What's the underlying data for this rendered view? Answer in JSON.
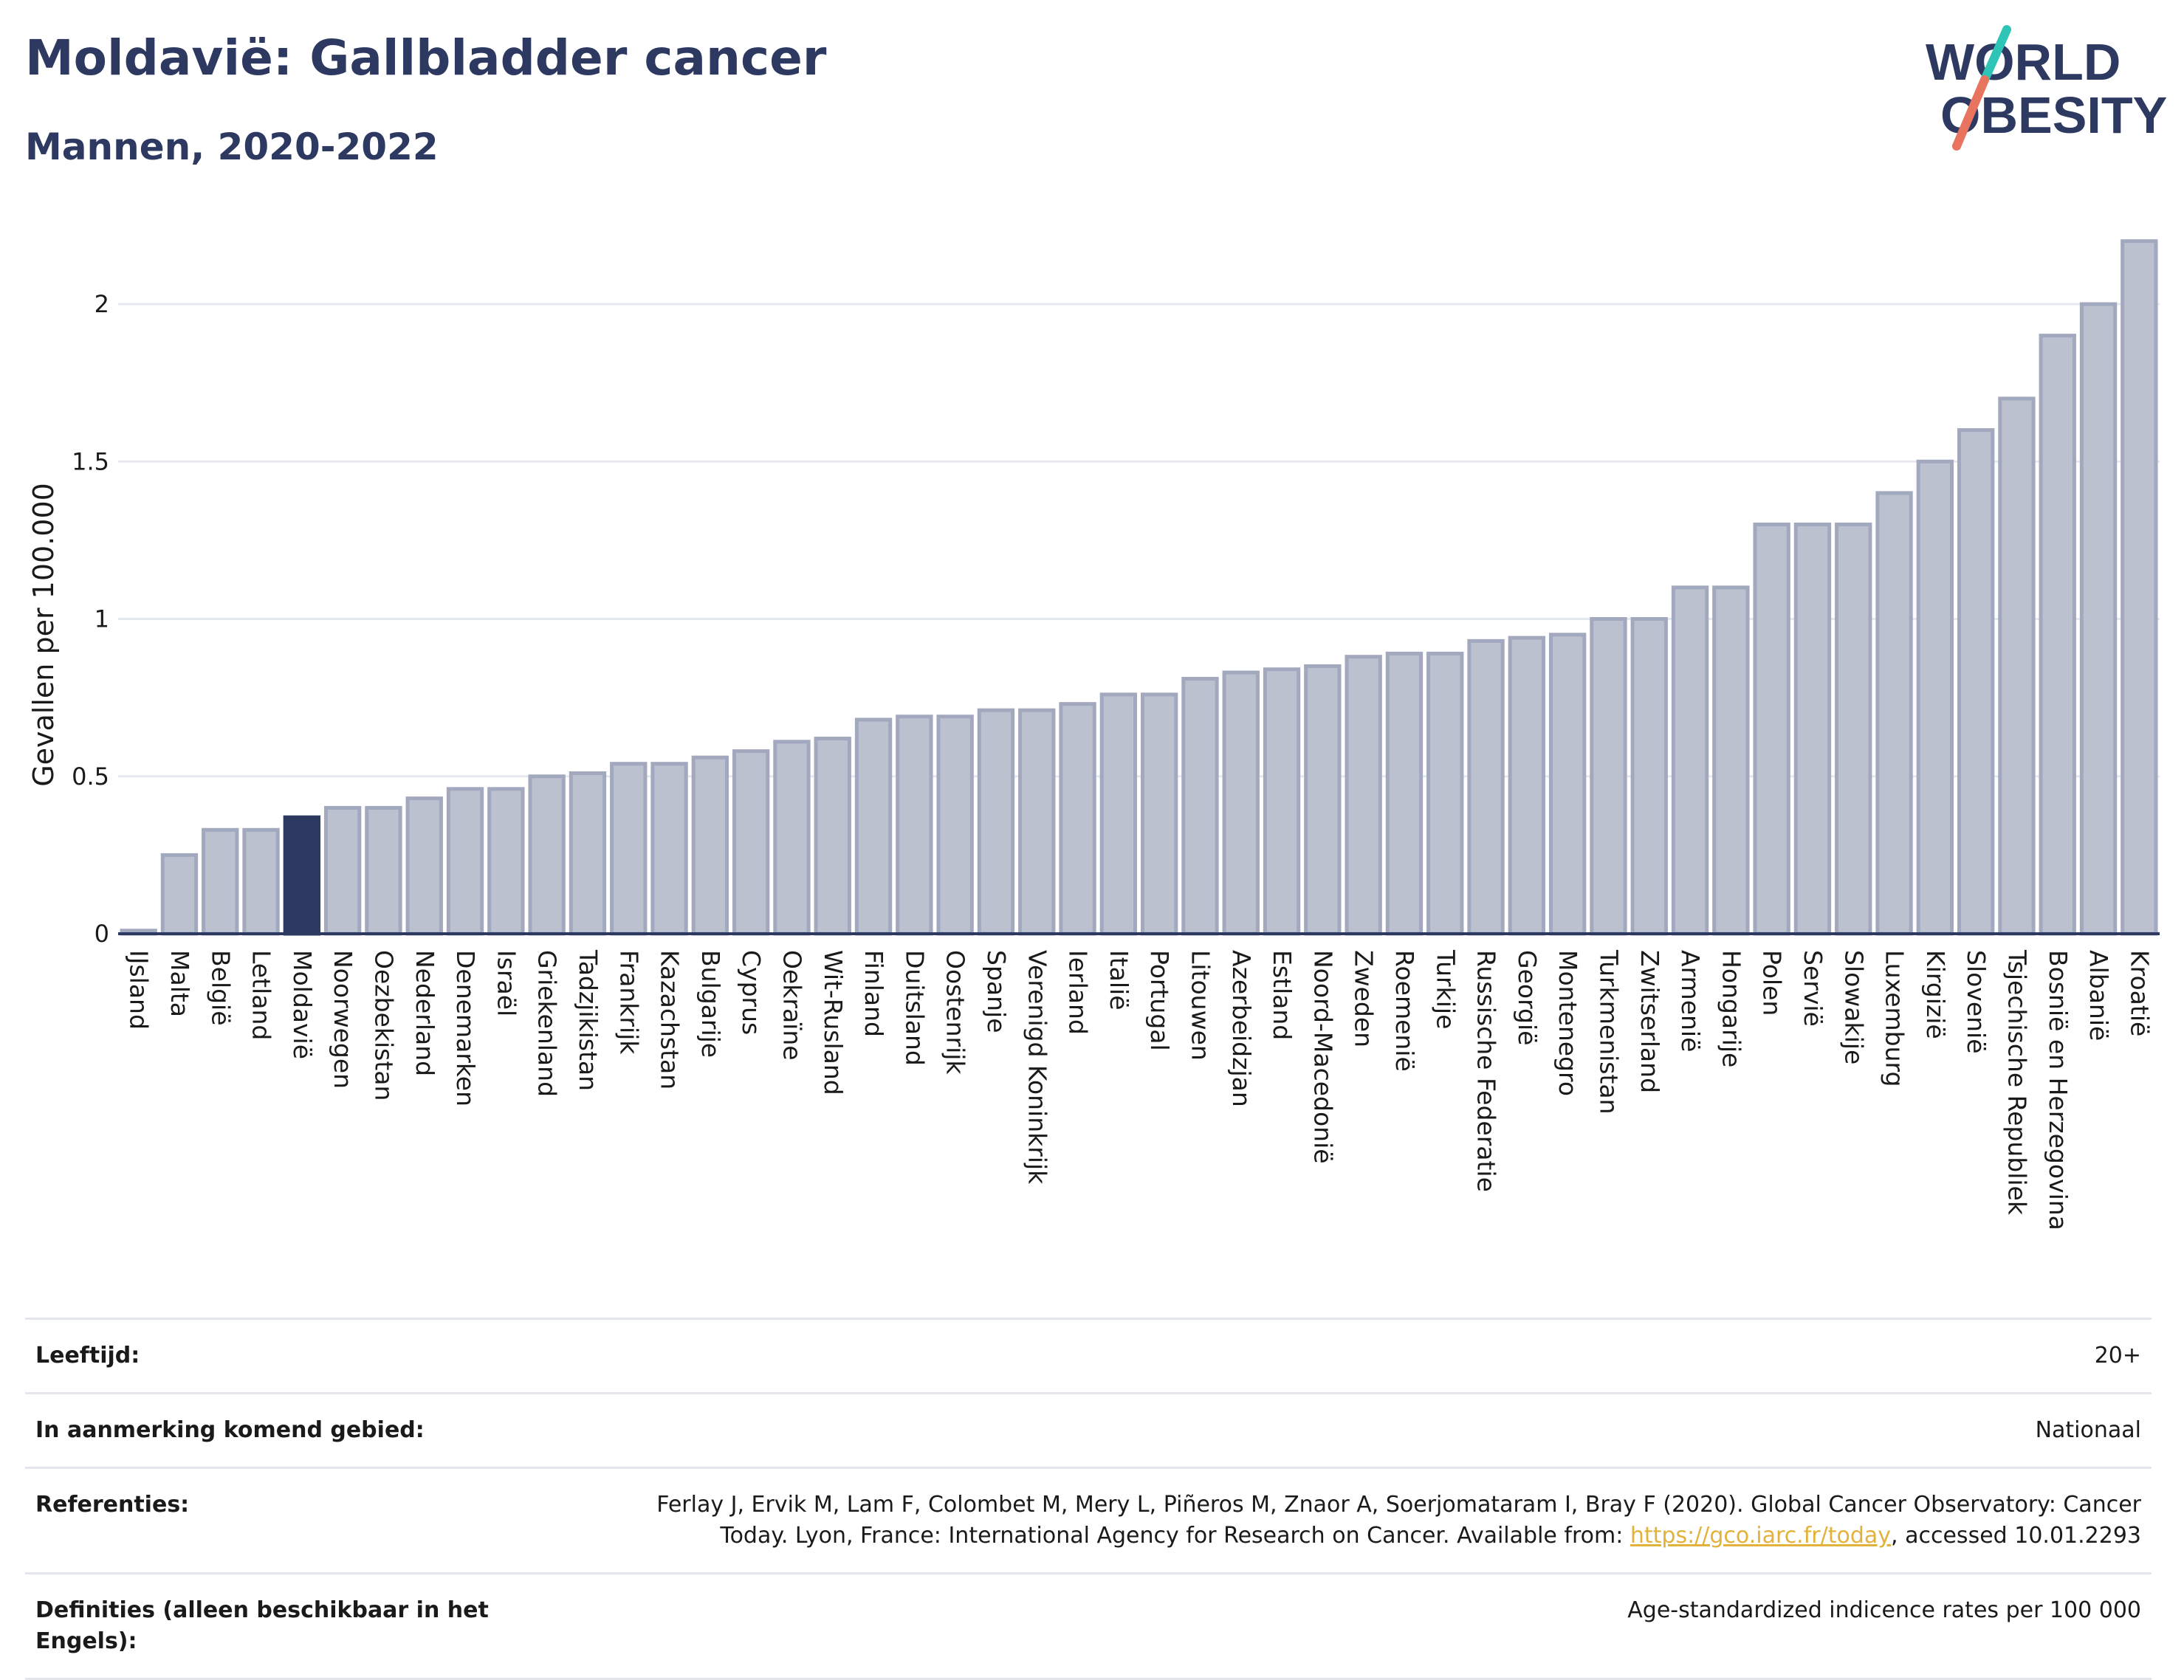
{
  "header": {
    "title": "Moldavië: Gallbladder cancer",
    "subtitle": "Mannen, 2020-2022"
  },
  "logo": {
    "line1": "WORLD",
    "line2": "OBESITY"
  },
  "colors": {
    "bar": "#bcc1d0",
    "bar_edge": "#a2a8bd",
    "highlight": "#2d3961",
    "grid": "#e6e8ef",
    "text_dark": "#2d3961",
    "logo_teal": "#2ec4b6",
    "logo_coral": "#e8735f"
  },
  "chart_data": {
    "type": "bar",
    "ylabel": "Gevallen per 100.000",
    "ylim": [
      0,
      2.2
    ],
    "yticks": [
      0,
      0.5,
      1,
      1.5,
      2
    ],
    "ytick_labels": [
      "0",
      "0.5",
      "1",
      "1.5",
      "2"
    ],
    "grid": true,
    "highlight": "Moldavië",
    "categories": [
      "IJsland",
      "Malta",
      "België",
      "Letland",
      "Moldavië",
      "Noorwegen",
      "Oezbekistan",
      "Nederland",
      "Denemarken",
      "Israël",
      "Griekenland",
      "Tadzjikistan",
      "Frankrijk",
      "Kazachstan",
      "Bulgarije",
      "Cyprus",
      "Oekraïne",
      "Wit-Rusland",
      "Finland",
      "Duitsland",
      "Oostenrijk",
      "Spanje",
      "Verenigd Koninkrijk",
      "Ierland",
      "Italië",
      "Portugal",
      "Litouwen",
      "Azerbeidzjan",
      "Estland",
      "Noord-Macedonië",
      "Zweden",
      "Roemenië",
      "Turkije",
      "Russische Federatie",
      "Georgië",
      "Montenegro",
      "Turkmenistan",
      "Zwitserland",
      "Armenië",
      "Hongarije",
      "Polen",
      "Servië",
      "Slowakije",
      "Luxemburg",
      "Kirgizië",
      "Slovenië",
      "Tsjechische Republiek",
      "Bosnië en Herzegovina",
      "Albanië",
      "Kroatië"
    ],
    "values": [
      0.01,
      0.25,
      0.33,
      0.33,
      0.37,
      0.4,
      0.4,
      0.43,
      0.46,
      0.46,
      0.5,
      0.51,
      0.54,
      0.54,
      0.56,
      0.58,
      0.61,
      0.62,
      0.68,
      0.69,
      0.69,
      0.71,
      0.71,
      0.73,
      0.76,
      0.76,
      0.81,
      0.83,
      0.84,
      0.85,
      0.88,
      0.89,
      0.89,
      0.93,
      0.94,
      0.95,
      1.0,
      1.0,
      1.1,
      1.1,
      1.3,
      1.3,
      1.3,
      1.4,
      1.5,
      1.6,
      1.7,
      1.9,
      2.0,
      2.2
    ]
  },
  "meta": [
    {
      "label": "Leeftijd:",
      "value": "20+"
    },
    {
      "label": "In aanmerking komend gebied:",
      "value": "Nationaal"
    },
    {
      "label": "Referenties:",
      "value_before": "Ferlay J, Ervik M, Lam F, Colombet M, Mery L, Piñeros M, Znaor A, Soerjomataram I, Bray F (2020). Global Cancer Observatory: Cancer Today. Lyon, France: International Agency for Research on Cancer. Available from: ",
      "link": "https://gco.iarc.fr/today",
      "value_after": ", accessed 10.01.2293"
    },
    {
      "label": "Definities (alleen beschikbaar in het Engels):",
      "value": "Age-standardized indicence rates per 100 000"
    }
  ]
}
